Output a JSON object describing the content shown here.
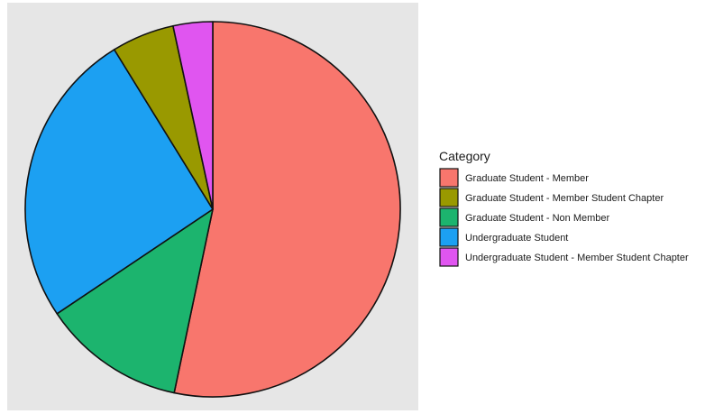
{
  "chart_data": {
    "type": "pie",
    "title": "",
    "legend": {
      "title": "Category",
      "placement": "right"
    },
    "start": "12 o'clock",
    "direction": "clockwise",
    "slices": [
      {
        "label": "Graduate Student - Member",
        "value": 53.3,
        "color": "#F8766D"
      },
      {
        "label": "Graduate Student - Non Member",
        "value": 12.3,
        "color": "#1CB46E"
      },
      {
        "label": "Undergraduate Student",
        "value": 25.6,
        "color": "#1CA0F2"
      },
      {
        "label": "Graduate Student - Member  Student Chapter",
        "value": 5.4,
        "color": "#999900"
      },
      {
        "label": "Undergraduate Student - Member  Student Chapter",
        "value": 3.4,
        "color": "#E055F0"
      }
    ],
    "legend_order": [
      "Graduate Student - Member",
      "Graduate Student - Member  Student Chapter",
      "Graduate Student - Non Member",
      "Undergraduate Student",
      "Undergraduate Student - Member  Student Chapter"
    ],
    "panel_background": "#E6E6E6",
    "outline_color": "#111111"
  }
}
